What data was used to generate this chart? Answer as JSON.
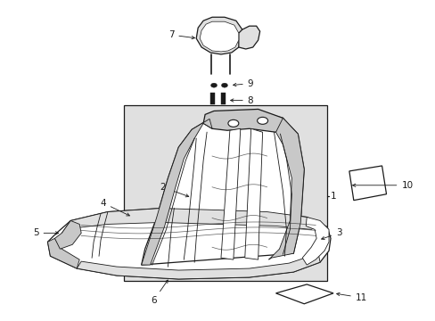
{
  "bg_color": "#ffffff",
  "line_color": "#1a1a1a",
  "gray_fill": "#c8c8c8",
  "light_fill": "#e0e0e0",
  "white": "#ffffff",
  "fig_w": 4.89,
  "fig_h": 3.6,
  "dpi": 100
}
